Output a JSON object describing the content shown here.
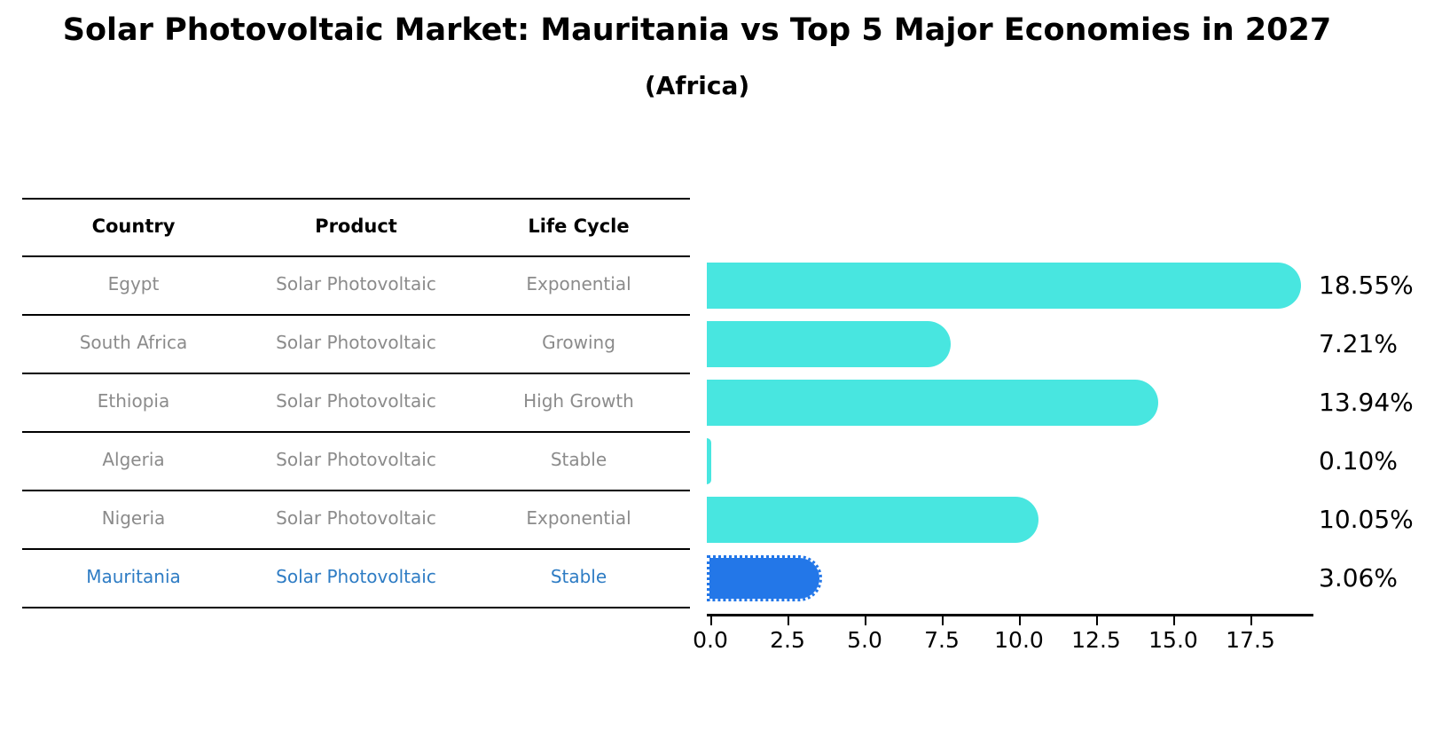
{
  "title": "Solar Photovoltaic Market: Mauritania vs Top 5 Major Economies in 2027",
  "subtitle": "(Africa)",
  "table": {
    "headers": [
      "Country",
      "Product",
      "Life Cycle"
    ],
    "rows": [
      {
        "country": "Egypt",
        "product": "Solar Photovoltaic",
        "life_cycle": "Exponential",
        "highlight": false
      },
      {
        "country": "South Africa",
        "product": "Solar Photovoltaic",
        "life_cycle": "Growing",
        "highlight": false
      },
      {
        "country": "Ethiopia",
        "product": "Solar Photovoltaic",
        "life_cycle": "High Growth",
        "highlight": false
      },
      {
        "country": "Algeria",
        "product": "Solar Photovoltaic",
        "life_cycle": "Stable",
        "highlight": false
      },
      {
        "country": "Nigeria",
        "product": "Solar Photovoltaic",
        "life_cycle": "Exponential",
        "highlight": false
      },
      {
        "country": "Mauritania",
        "product": "Solar Photovoltaic",
        "life_cycle": "Stable",
        "highlight": true
      }
    ]
  },
  "chart_data": {
    "type": "bar",
    "orientation": "horizontal",
    "title": "Solar Photovoltaic Market: Mauritania vs Top 5 Major Economies in 2027",
    "subtitle": "(Africa)",
    "categories": [
      "Egypt",
      "South Africa",
      "Ethiopia",
      "Algeria",
      "Nigeria",
      "Mauritania"
    ],
    "values": [
      18.55,
      7.21,
      13.94,
      0.1,
      10.05,
      3.06
    ],
    "value_labels": [
      "18.55%",
      "7.21%",
      "13.94%",
      "0.10%",
      "10.05%",
      "3.06%"
    ],
    "xlabel": "",
    "ylabel": "",
    "xlim": [
      0,
      19.6
    ],
    "xticks": [
      0.0,
      2.5,
      5.0,
      7.5,
      10.0,
      12.5,
      15.0,
      17.5
    ],
    "xtick_labels": [
      "0.0",
      "2.5",
      "5.0",
      "7.5",
      "10.0",
      "12.5",
      "15.0",
      "17.5"
    ],
    "grid": false,
    "legend": false,
    "highlight_index": 5
  },
  "colors": {
    "bar": "#48e6e0",
    "highlight_bar": "#2377e8",
    "highlight_text": "#2e7cc4",
    "cell_text": "#8b8b8b",
    "axis": "#000000",
    "background": "#ffffff"
  }
}
